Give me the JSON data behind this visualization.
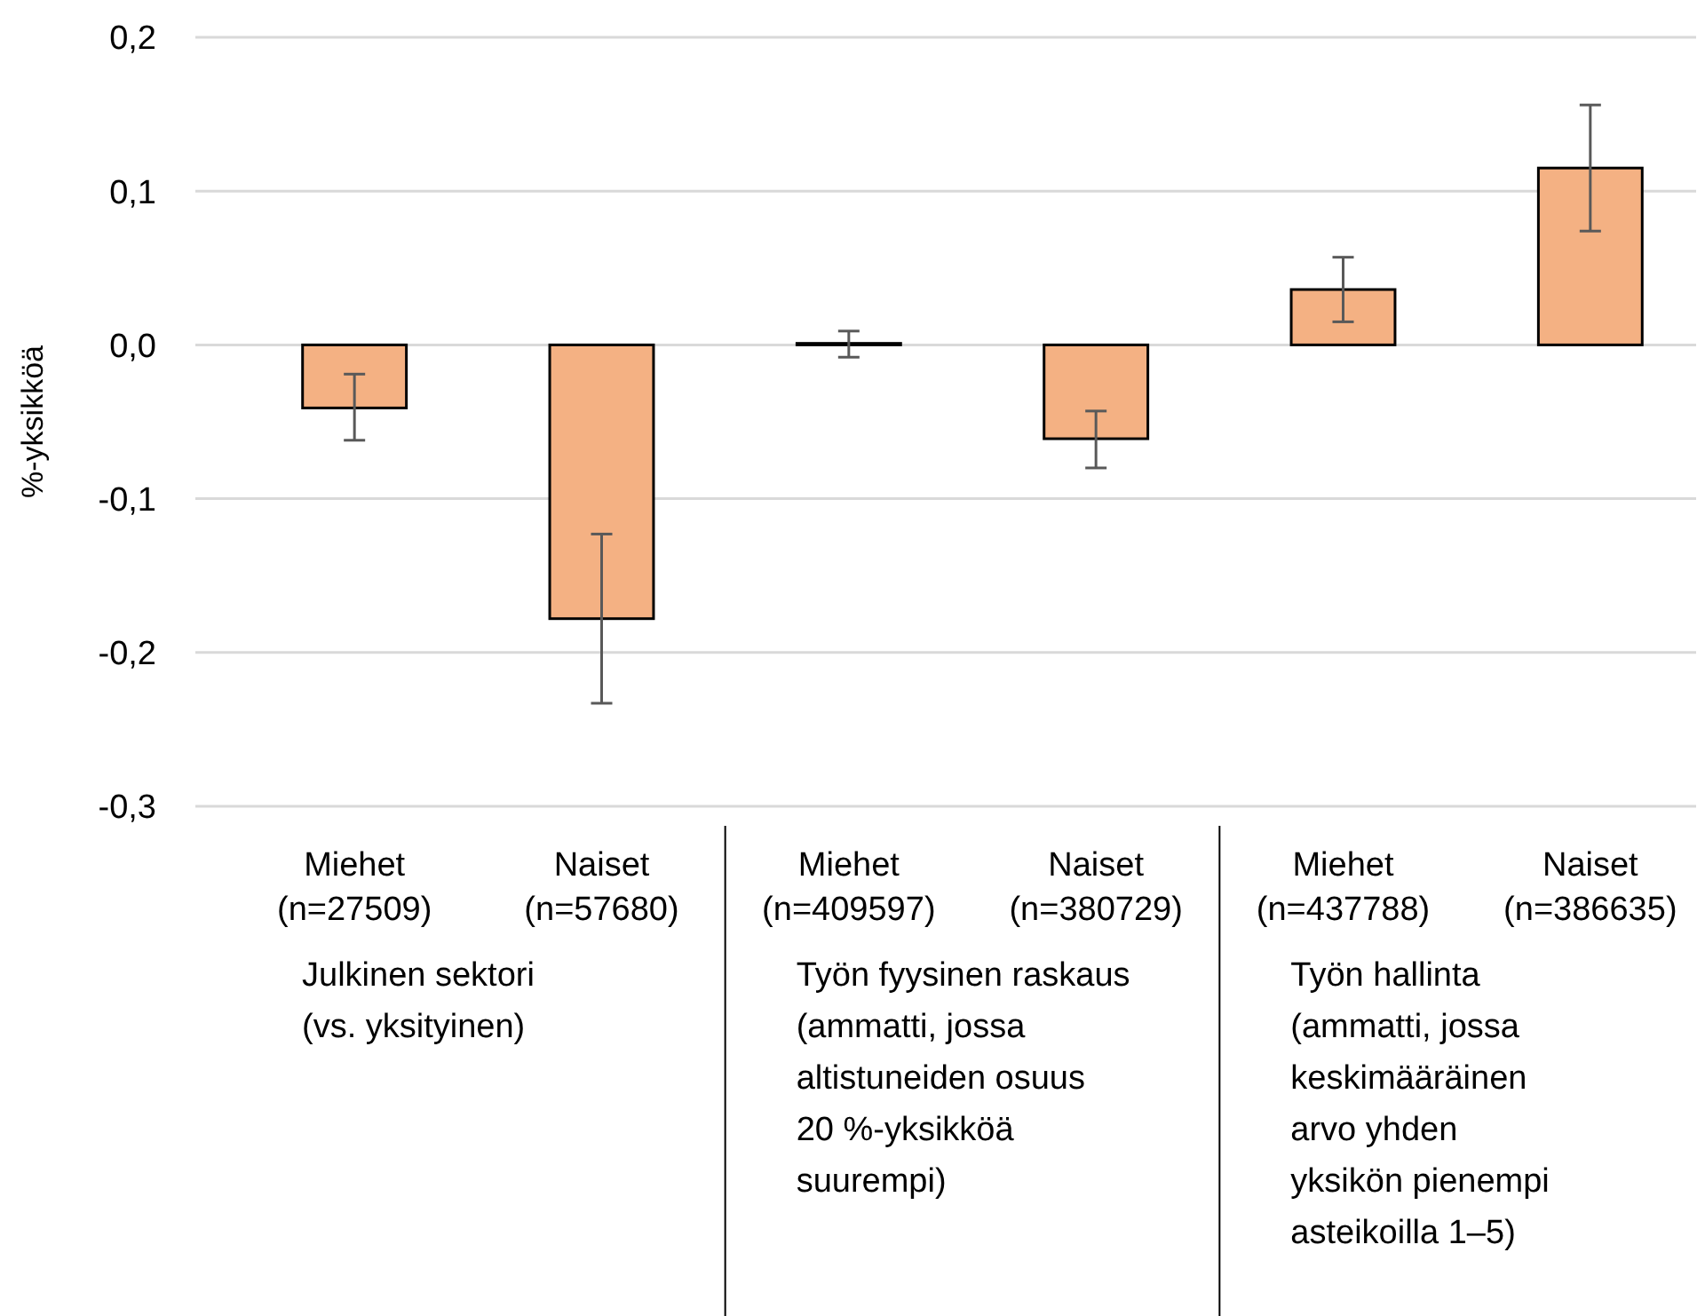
{
  "chart_data": {
    "type": "bar",
    "ylabel": "%-yksikköä",
    "categories": [
      "Miehet\n(n=27509)",
      "Naiset\n(n=57680)",
      "Miehet\n(n=409597)",
      "Naiset\n(n=380729)",
      "Miehet\n(n=437788)",
      "Naiset\n(n=386635)"
    ],
    "series": [
      {
        "color": "#f4b183",
        "values": [
          -0.041,
          -0.178,
          0.001,
          -0.061,
          0.036,
          0.115
        ],
        "errors": [
          [
            -0.062,
            -0.019
          ],
          [
            -0.233,
            -0.123
          ],
          [
            -0.008,
            0.009
          ],
          [
            -0.08,
            -0.043
          ],
          [
            0.015,
            0.057
          ],
          [
            0.074,
            0.156
          ]
        ]
      }
    ],
    "ylim": [
      -0.3,
      0.2
    ],
    "yticks": [
      {
        "value": -0.3,
        "label": "-0,3"
      },
      {
        "value": -0.2,
        "label": "-0,2"
      },
      {
        "value": -0.1,
        "label": "-0,1"
      },
      {
        "value": 0,
        "label": "0,0"
      },
      {
        "value": 0.1,
        "label": "0,1"
      },
      {
        "value": 0.2,
        "label": "0,2"
      }
    ],
    "grid": "y",
    "annotations": [
      "Julkinen sektori\n(vs. yksityinen)",
      "Työn fyysinen raskaus\n(ammatti, jossa\naltistuneiden osuus\n20 %-yksikköä\nsuurempi)",
      "Työn hallinta\n(ammatti, jossa\nkeskimääräinen\narvo yhden\nyksikön pienempi\nasteikoilla 1–5)"
    ]
  }
}
